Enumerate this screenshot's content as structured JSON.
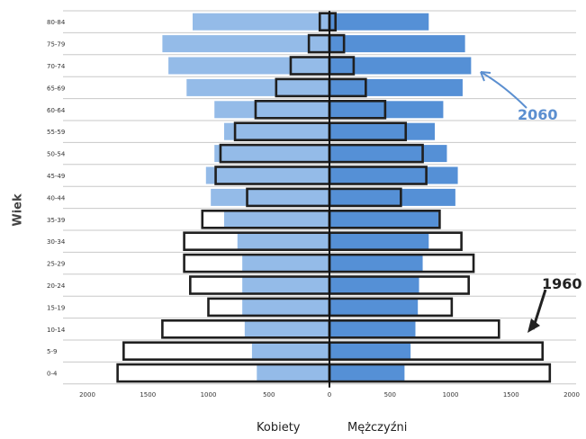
{
  "chart_data": {
    "type": "bar",
    "orientation": "horizontal-pyramid",
    "ylabel": "Wiek",
    "categories": [
      "0-4",
      "5-9",
      "10-14",
      "15-19",
      "20-24",
      "25-29",
      "30-34",
      "35-39",
      "40-44",
      "45-49",
      "50-54",
      "55-59",
      "60-64",
      "65-69",
      "70-74",
      "75-79",
      "80-84"
    ],
    "x_ticks": [
      "2000",
      "1500",
      "1000",
      "500",
      "0",
      "500",
      "1000",
      "1500",
      "2000"
    ],
    "xlim": [
      -2000,
      2000
    ],
    "grid": true,
    "legend": [
      "Kobiety",
      "Mężczyźni"
    ],
    "series": [
      {
        "name": "Kobiety",
        "year": "2060",
        "values": [
          600,
          640,
          700,
          720,
          720,
          720,
          760,
          870,
          980,
          1020,
          950,
          870,
          950,
          1180,
          1330,
          1380,
          1130
        ]
      },
      {
        "name": "Mężczyźni",
        "year": "2060",
        "values": [
          620,
          670,
          710,
          730,
          740,
          770,
          820,
          900,
          1040,
          1060,
          970,
          870,
          940,
          1100,
          1170,
          1120,
          820
        ]
      },
      {
        "name": "Kobiety",
        "year": "1960",
        "values": [
          1750,
          1700,
          1380,
          1000,
          1150,
          1200,
          1200,
          1050,
          680,
          940,
          900,
          780,
          610,
          440,
          320,
          170,
          80
        ]
      },
      {
        "name": "Mężczyźni",
        "year": "1960",
        "values": [
          1820,
          1760,
          1400,
          1010,
          1150,
          1190,
          1090,
          910,
          590,
          800,
          770,
          630,
          460,
          300,
          200,
          120,
          50
        ]
      }
    ],
    "annotations": [
      {
        "text": "2060",
        "color": "#5b8fd0"
      },
      {
        "text": "1960",
        "color": "#222222"
      }
    ],
    "colors": {
      "female_2060": "#94bbe8",
      "male_2060": "#5590d6",
      "outline_1960": "#1f1f1f",
      "grid": "#c8c8c8"
    }
  }
}
